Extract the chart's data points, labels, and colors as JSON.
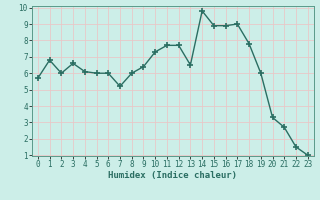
{
  "x": [
    0,
    1,
    2,
    3,
    4,
    5,
    6,
    7,
    8,
    9,
    10,
    11,
    12,
    13,
    14,
    15,
    16,
    17,
    18,
    19,
    20,
    21,
    22,
    23
  ],
  "y": [
    5.7,
    6.8,
    6.0,
    6.6,
    6.1,
    6.0,
    6.0,
    5.2,
    6.0,
    6.4,
    7.3,
    7.7,
    7.7,
    6.5,
    9.8,
    8.9,
    8.9,
    9.0,
    7.8,
    6.0,
    3.3,
    2.7,
    1.5,
    1.0
  ],
  "xlabel": "Humidex (Indice chaleur)",
  "ylim": [
    1,
    10
  ],
  "xlim": [
    -0.5,
    23.5
  ],
  "yticks": [
    1,
    2,
    3,
    4,
    5,
    6,
    7,
    8,
    9,
    10
  ],
  "xticks": [
    0,
    1,
    2,
    3,
    4,
    5,
    6,
    7,
    8,
    9,
    10,
    11,
    12,
    13,
    14,
    15,
    16,
    17,
    18,
    19,
    20,
    21,
    22,
    23
  ],
  "line_color": "#2a6e62",
  "bg_color": "#cceee8",
  "grid_color": "#e8c8c8",
  "marker": "+",
  "marker_size": 4,
  "line_width": 1.0,
  "tick_fontsize": 5.5,
  "xlabel_fontsize": 6.5
}
